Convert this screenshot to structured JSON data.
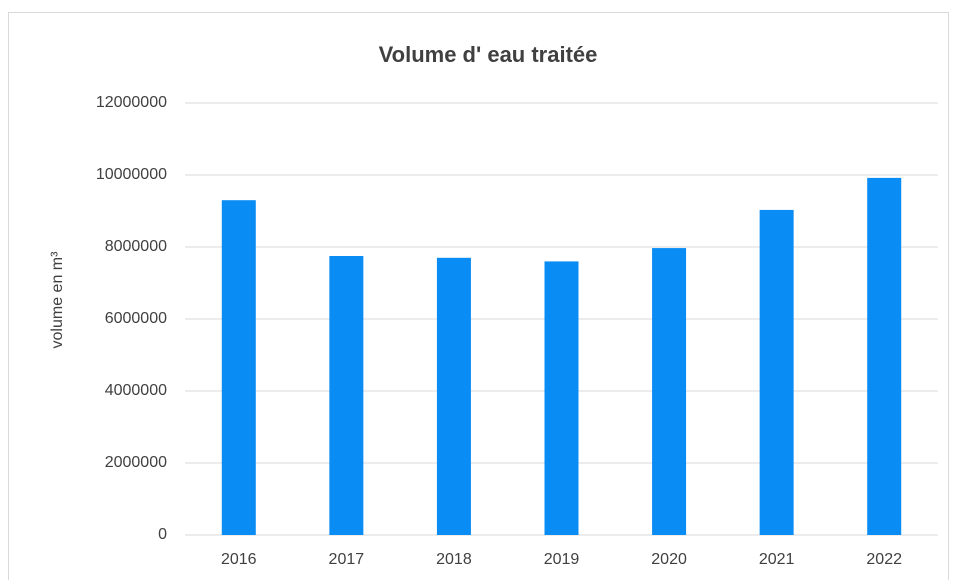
{
  "chart_data": {
    "type": "bar",
    "title": "Volume d' eau traitée",
    "ylabel": "volume en m³",
    "categories": [
      "2016",
      "2017",
      "2018",
      "2019",
      "2020",
      "2021",
      "2022"
    ],
    "values": [
      9300000,
      7750000,
      7700000,
      7600000,
      7970000,
      9030000,
      9920000
    ],
    "color": "#0a8cf5",
    "ylim": [
      0,
      12000000
    ],
    "yticks": [
      0,
      2000000,
      4000000,
      6000000,
      8000000,
      10000000,
      12000000
    ],
    "grid": true
  }
}
